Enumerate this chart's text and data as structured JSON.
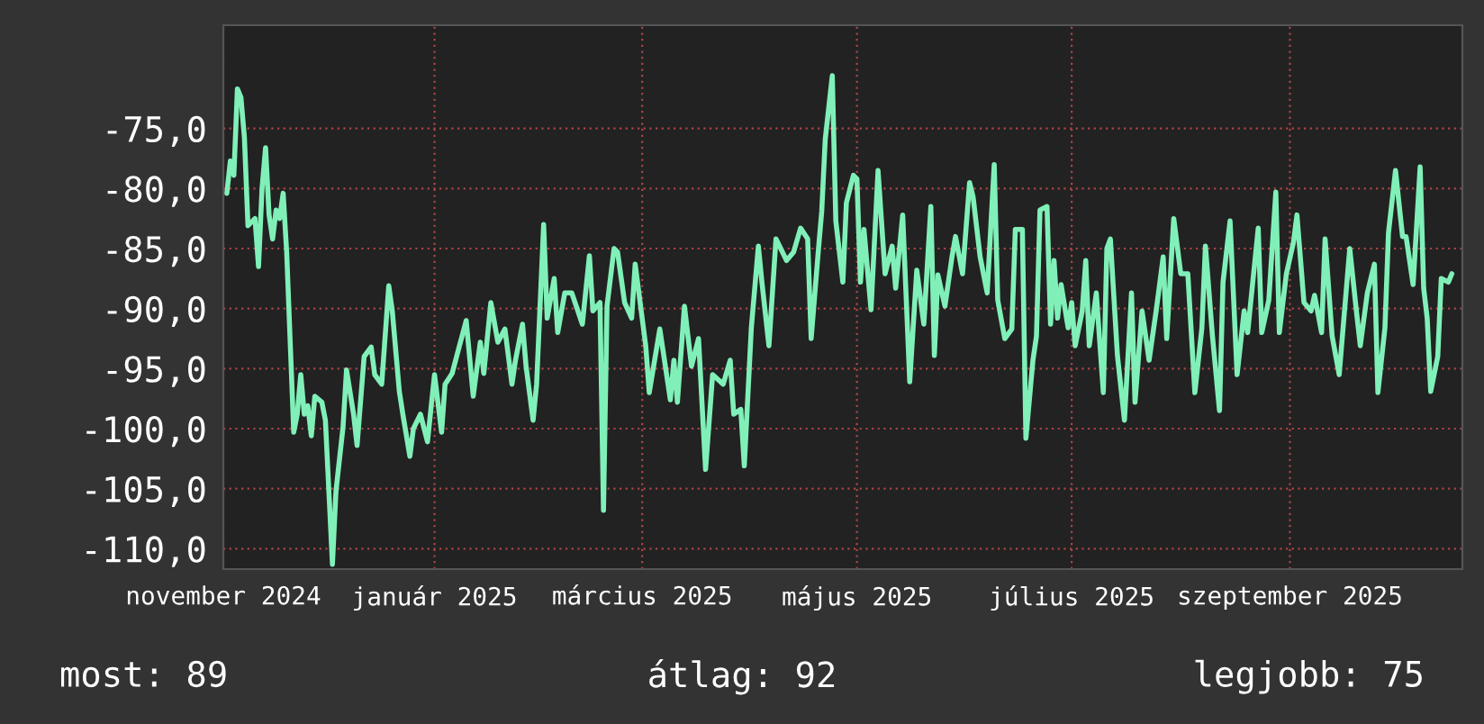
{
  "chart_data": {
    "type": "line",
    "x": [
      "2024-11-03",
      "2024-11-04",
      "2024-11-05",
      "2024-11-06",
      "2024-11-07",
      "2024-11-08",
      "2024-11-09",
      "2024-11-11",
      "2024-11-12",
      "2024-11-13",
      "2024-11-14",
      "2024-11-15",
      "2024-11-16",
      "2024-11-17",
      "2024-11-18",
      "2024-11-19",
      "2024-11-20",
      "2024-11-22",
      "2024-11-23",
      "2024-11-24",
      "2024-11-25",
      "2024-11-26",
      "2024-11-27",
      "2024-11-28",
      "2024-11-30",
      "2024-12-01",
      "2024-12-02",
      "2024-12-03",
      "2024-12-04",
      "2024-12-06",
      "2024-12-07",
      "2024-12-09",
      "2024-12-10",
      "2024-12-12",
      "2024-12-14",
      "2024-12-15",
      "2024-12-17",
      "2024-12-19",
      "2024-12-20",
      "2024-12-22",
      "2024-12-23",
      "2024-12-25",
      "2024-12-26",
      "2024-12-28",
      "2024-12-30",
      "2025-01-01",
      "2025-01-03",
      "2025-01-04",
      "2025-01-06",
      "2025-01-08",
      "2025-01-10",
      "2025-01-12",
      "2025-01-14",
      "2025-01-15",
      "2025-01-17",
      "2025-01-19",
      "2025-01-21",
      "2025-01-23",
      "2025-01-24",
      "2025-01-26",
      "2025-01-27",
      "2025-01-29",
      "2025-01-30",
      "2025-02-01",
      "2025-02-02",
      "2025-02-04",
      "2025-02-05",
      "2025-02-07",
      "2025-02-09",
      "2025-02-12",
      "2025-02-14",
      "2025-02-15",
      "2025-02-17",
      "2025-02-18",
      "2025-02-19",
      "2025-02-21",
      "2025-02-22",
      "2025-02-24",
      "2025-02-26",
      "2025-02-27",
      "2025-03-02",
      "2025-03-03",
      "2025-03-06",
      "2025-03-09",
      "2025-03-10",
      "2025-03-11",
      "2025-03-13",
      "2025-03-15",
      "2025-03-17",
      "2025-03-19",
      "2025-03-21",
      "2025-03-24",
      "2025-03-26",
      "2025-03-27",
      "2025-03-29",
      "2025-03-30",
      "2025-04-01",
      "2025-04-03",
      "2025-04-04",
      "2025-04-06",
      "2025-04-08",
      "2025-04-11",
      "2025-04-13",
      "2025-04-15",
      "2025-04-17",
      "2025-04-18",
      "2025-04-20",
      "2025-04-21",
      "2025-04-22",
      "2025-04-24",
      "2025-04-25",
      "2025-04-27",
      "2025-04-28",
      "2025-04-30",
      "2025-05-01",
      "2025-05-02",
      "2025-05-03",
      "2025-05-05",
      "2025-05-07",
      "2025-05-09",
      "2025-05-11",
      "2025-05-12",
      "2025-05-14",
      "2025-05-16",
      "2025-05-18",
      "2025-05-20",
      "2025-05-22",
      "2025-05-23",
      "2025-05-24",
      "2025-05-26",
      "2025-05-28",
      "2025-05-29",
      "2025-05-31",
      "2025-06-02",
      "2025-06-03",
      "2025-06-05",
      "2025-06-07",
      "2025-06-09",
      "2025-06-10",
      "2025-06-12",
      "2025-06-14",
      "2025-06-15",
      "2025-06-17",
      "2025-06-18",
      "2025-06-20",
      "2025-06-21",
      "2025-06-22",
      "2025-06-24",
      "2025-06-25",
      "2025-06-26",
      "2025-06-27",
      "2025-06-28",
      "2025-06-30",
      "2025-07-01",
      "2025-07-02",
      "2025-07-04",
      "2025-07-05",
      "2025-07-06",
      "2025-07-08",
      "2025-07-10",
      "2025-07-11",
      "2025-07-12",
      "2025-07-14",
      "2025-07-16",
      "2025-07-18",
      "2025-07-19",
      "2025-07-21",
      "2025-07-23",
      "2025-07-25",
      "2025-07-27",
      "2025-07-28",
      "2025-07-30",
      "2025-08-01",
      "2025-08-03",
      "2025-08-05",
      "2025-08-07",
      "2025-08-08",
      "2025-08-10",
      "2025-08-12",
      "2025-08-13",
      "2025-08-15",
      "2025-08-17",
      "2025-08-19",
      "2025-08-20",
      "2025-08-23",
      "2025-08-24",
      "2025-08-26",
      "2025-08-28",
      "2025-08-29",
      "2025-08-31",
      "2025-09-02",
      "2025-09-03",
      "2025-09-05",
      "2025-09-07",
      "2025-09-08",
      "2025-09-10",
      "2025-09-11",
      "2025-09-13",
      "2025-09-15",
      "2025-09-16",
      "2025-09-18",
      "2025-09-20",
      "2025-09-21",
      "2025-09-23",
      "2025-09-25",
      "2025-09-26",
      "2025-09-28",
      "2025-09-29",
      "2025-10-01",
      "2025-10-03",
      "2025-10-04",
      "2025-10-06",
      "2025-10-08",
      "2025-10-09",
      "2025-10-10",
      "2025-10-11",
      "2025-10-13",
      "2025-10-14",
      "2025-10-16",
      "2025-10-17"
    ],
    "series": [
      {
        "color": "#80f0b8",
        "values": [
          -80.4,
          -77.7,
          -78.9,
          -71.7,
          -72.4,
          -75.8,
          -83.1,
          -82.5,
          -86.5,
          -80.0,
          -76.6,
          -82.2,
          -84.2,
          -81.8,
          -82.5,
          -80.4,
          -85.3,
          -100.3,
          -98.8,
          -95.5,
          -98.8,
          -98.1,
          -100.6,
          -97.3,
          -97.8,
          -99.3,
          -105.3,
          -111.3,
          -105.2,
          -99.9,
          -95.1,
          -98.8,
          -101.4,
          -94.0,
          -93.2,
          -95.5,
          -96.3,
          -88.1,
          -90.2,
          -96.9,
          -98.8,
          -102.3,
          -100.0,
          -98.8,
          -101.1,
          -95.5,
          -100.3,
          -96.3,
          -95.4,
          -93.2,
          -91.0,
          -97.3,
          -92.8,
          -95.4,
          -89.5,
          -92.8,
          -91.7,
          -96.3,
          -94.3,
          -91.3,
          -94.8,
          -99.3,
          -96.3,
          -83.0,
          -90.8,
          -87.5,
          -92.0,
          -88.7,
          -88.7,
          -91.3,
          -85.6,
          -90.2,
          -89.5,
          -106.8,
          -89.8,
          -85.0,
          -85.3,
          -89.5,
          -90.8,
          -86.3,
          -93.1,
          -97.0,
          -91.7,
          -97.6,
          -94.3,
          -97.8,
          -89.8,
          -94.8,
          -92.5,
          -103.4,
          -95.5,
          -96.3,
          -94.3,
          -98.8,
          -98.4,
          -103.1,
          -91.6,
          -84.8,
          -87.8,
          -93.1,
          -84.2,
          -86.0,
          -85.3,
          -83.3,
          -84.2,
          -92.5,
          -85.3,
          -81.9,
          -75.9,
          -70.6,
          -82.7,
          -87.8,
          -81.2,
          -78.9,
          -79.2,
          -87.8,
          -83.4,
          -90.1,
          -78.5,
          -87.1,
          -84.8,
          -88.3,
          -82.2,
          -96.1,
          -86.8,
          -91.3,
          -81.5,
          -93.9,
          -87.2,
          -89.8,
          -85.7,
          -84.0,
          -87.1,
          -79.5,
          -80.7,
          -85.7,
          -88.7,
          -78.0,
          -89.3,
          -92.5,
          -91.7,
          -83.4,
          -83.4,
          -100.8,
          -94.3,
          -92.3,
          -81.8,
          -81.5,
          -91.3,
          -86.0,
          -90.8,
          -88.0,
          -91.6,
          -89.5,
          -93.1,
          -90.2,
          -86.0,
          -93.1,
          -88.7,
          -97.0,
          -85.0,
          -84.2,
          -93.9,
          -99.3,
          -88.7,
          -97.8,
          -90.2,
          -94.3,
          -90.2,
          -85.7,
          -92.5,
          -82.5,
          -87.1,
          -87.1,
          -97.0,
          -91.6,
          -84.8,
          -92.3,
          -98.5,
          -87.8,
          -82.7,
          -95.5,
          -90.2,
          -92.0,
          -83.3,
          -92.0,
          -89.3,
          -80.3,
          -92.0,
          -87.1,
          -84.5,
          -82.2,
          -89.5,
          -90.2,
          -88.9,
          -92.0,
          -84.2,
          -92.3,
          -95.5,
          -92.0,
          -85.0,
          -90.5,
          -93.1,
          -88.7,
          -86.3,
          -97.0,
          -91.6,
          -83.7,
          -78.5,
          -84.0,
          -84.0,
          -88.0,
          -78.2,
          -88.3,
          -90.8,
          -96.9,
          -94.0,
          -87.5,
          -87.8,
          -87.1
        ]
      }
    ],
    "xlim": [
      "2024-11-02",
      "2025-10-20"
    ],
    "xticks": [
      {
        "value": "2024-11-02",
        "label": "november 2024"
      },
      {
        "value": "2025-01-01",
        "label": "január 2025"
      },
      {
        "value": "2025-03-01",
        "label": "március 2025"
      },
      {
        "value": "2025-05-01",
        "label": "május 2025"
      },
      {
        "value": "2025-07-01",
        "label": "július 2025"
      },
      {
        "value": "2025-09-01",
        "label": "szeptember 2025"
      }
    ],
    "ylim": [
      -111.7,
      -66.4
    ],
    "yticks": [
      {
        "value": -75,
        "label": "-75,0"
      },
      {
        "value": -80,
        "label": "-80,0"
      },
      {
        "value": -85,
        "label": "-85,0"
      },
      {
        "value": -90,
        "label": "-90,0"
      },
      {
        "value": -95,
        "label": "-95,0"
      },
      {
        "value": -100,
        "label": "-100,0"
      },
      {
        "value": -105,
        "label": "-105,0"
      },
      {
        "value": -110,
        "label": "-110,0"
      }
    ],
    "grid": true,
    "annotations": [
      "most: 89",
      "átlag: 92",
      "legjobb: 75"
    ]
  }
}
